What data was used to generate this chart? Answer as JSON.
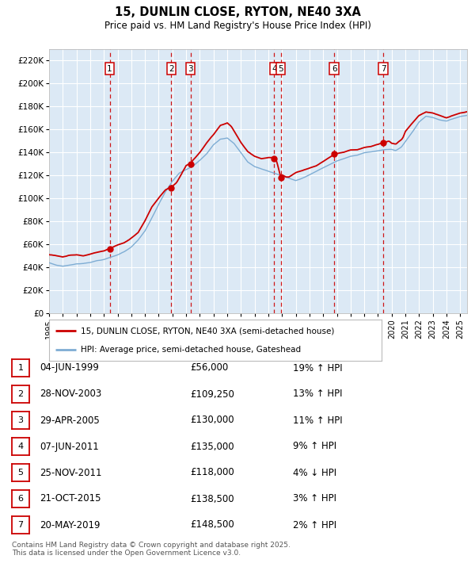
{
  "title": "15, DUNLIN CLOSE, RYTON, NE40 3XA",
  "subtitle": "Price paid vs. HM Land Registry's House Price Index (HPI)",
  "bg_color": "#dce9f5",
  "red_line_color": "#cc0000",
  "blue_line_color": "#7eadd4",
  "ylim": [
    0,
    230000
  ],
  "yticks": [
    0,
    20000,
    40000,
    60000,
    80000,
    100000,
    120000,
    140000,
    160000,
    180000,
    200000,
    220000
  ],
  "ytick_labels": [
    "£0",
    "£20K",
    "£40K",
    "£60K",
    "£80K",
    "£100K",
    "£120K",
    "£140K",
    "£160K",
    "£180K",
    "£200K",
    "£220K"
  ],
  "sale_dates": [
    1999.42,
    2003.91,
    2005.32,
    2011.43,
    2011.9,
    2015.8,
    2019.38
  ],
  "sale_prices": [
    56000,
    109250,
    130000,
    135000,
    118000,
    138500,
    148500
  ],
  "sale_labels": [
    "1",
    "2",
    "3",
    "4",
    "5",
    "6",
    "7"
  ],
  "sale_table": [
    [
      "1",
      "04-JUN-1999",
      "£56,000",
      "19% ↑ HPI"
    ],
    [
      "2",
      "28-NOV-2003",
      "£109,250",
      "13% ↑ HPI"
    ],
    [
      "3",
      "29-APR-2005",
      "£130,000",
      "11% ↑ HPI"
    ],
    [
      "4",
      "07-JUN-2011",
      "£135,000",
      "9% ↑ HPI"
    ],
    [
      "5",
      "25-NOV-2011",
      "£118,000",
      "4% ↓ HPI"
    ],
    [
      "6",
      "21-OCT-2015",
      "£138,500",
      "3% ↑ HPI"
    ],
    [
      "7",
      "20-MAY-2019",
      "£148,500",
      "2% ↑ HPI"
    ]
  ],
  "legend_line1": "15, DUNLIN CLOSE, RYTON, NE40 3XA (semi-detached house)",
  "legend_line2": "HPI: Average price, semi-detached house, Gateshead",
  "footer": "Contains HM Land Registry data © Crown copyright and database right 2025.\nThis data is licensed under the Open Government Licence v3.0.",
  "xstart": 1995.0,
  "xend": 2025.5
}
